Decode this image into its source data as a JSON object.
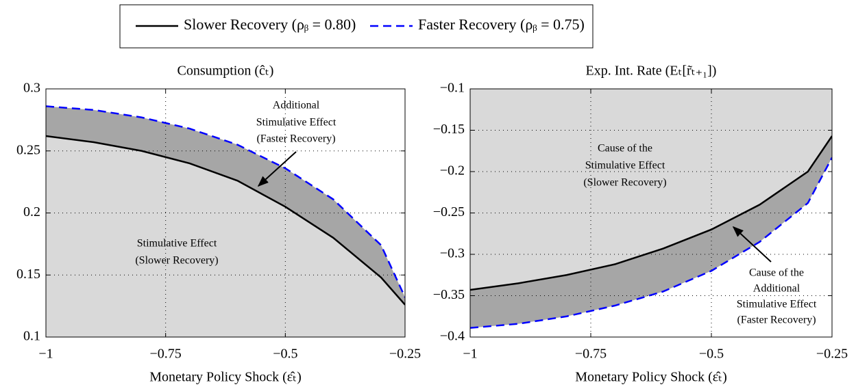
{
  "legend": {
    "position": "top"
  },
  "chart_data": [
    {
      "type": "line",
      "title": "Consumption (ĉₜ)",
      "xlabel": "Monetary Policy Shock (ε̂ₜ)",
      "x": [
        -1,
        -0.9,
        -0.8,
        -0.7,
        -0.6,
        -0.5,
        -0.4,
        -0.3,
        -0.25
      ],
      "series": [
        {
          "name": "Slower Recovery (ρᵦ = 0.80)",
          "color": "#000000",
          "dash": false,
          "values": [
            0.262,
            0.257,
            0.25,
            0.24,
            0.226,
            0.205,
            0.18,
            0.148,
            0.126
          ]
        },
        {
          "name": "Faster Recovery (ρᵦ = 0.75)",
          "color": "#0000ff",
          "dash": true,
          "values": [
            0.286,
            0.283,
            0.277,
            0.268,
            0.255,
            0.236,
            0.211,
            0.174,
            0.132
          ]
        }
      ],
      "xlim": [
        -1,
        -0.25
      ],
      "xticks": [
        {
          "value": -1,
          "label": "−1"
        },
        {
          "value": -0.75,
          "label": "−0.75"
        },
        {
          "value": -0.5,
          "label": "−0.5"
        },
        {
          "value": -0.25,
          "label": "−0.25"
        }
      ],
      "ylim": [
        0.1,
        0.3
      ],
      "yticks": [
        0.1,
        0.15,
        0.2,
        0.25,
        0.3
      ],
      "grid": true,
      "shade": "below",
      "shade_color": "#d9d9d9",
      "band_color": "#a6a6a6",
      "annotations": [
        [
          "Additional",
          "Stimulative Effect",
          "(Faster Recovery)"
        ],
        [
          "Stimulative Effect",
          "(Slower Recovery)"
        ]
      ]
    },
    {
      "type": "line",
      "title": "Exp. Int. Rate (Eₜ[r̃ₜ₊₁])",
      "xlabel": "Monetary Policy Shock (ε̂ₜ)",
      "x": [
        -1,
        -0.9,
        -0.8,
        -0.7,
        -0.6,
        -0.5,
        -0.4,
        -0.3,
        -0.25
      ],
      "series": [
        {
          "color": "#000000",
          "dash": false,
          "values": [
            -0.343,
            -0.335,
            -0.325,
            -0.312,
            -0.293,
            -0.27,
            -0.24,
            -0.2,
            -0.157
          ]
        },
        {
          "color": "#0000ff",
          "dash": true,
          "values": [
            -0.389,
            -0.384,
            -0.375,
            -0.362,
            -0.345,
            -0.32,
            -0.285,
            -0.238,
            -0.183
          ]
        }
      ],
      "xlim": [
        -1,
        -0.25
      ],
      "xticks": [
        {
          "value": -1,
          "label": "−1"
        },
        {
          "value": -0.75,
          "label": "−0.75"
        },
        {
          "value": -0.5,
          "label": "−0.5"
        },
        {
          "value": -0.25,
          "label": "−0.25"
        }
      ],
      "ylim": [
        -0.4,
        -0.1
      ],
      "yticks": [
        {
          "value": -0.4,
          "label": "−0.4"
        },
        {
          "value": -0.35,
          "label": "−0.35"
        },
        {
          "value": -0.3,
          "label": "−0.3"
        },
        {
          "value": -0.25,
          "label": "−0.25"
        },
        {
          "value": -0.2,
          "label": "−0.2"
        },
        {
          "value": -0.15,
          "label": "−0.15"
        },
        {
          "value": -0.1,
          "label": "−0.1"
        }
      ],
      "grid": true,
      "shade": "above",
      "shade_color": "#d9d9d9",
      "band_color": "#a6a6a6",
      "annotations": [
        [
          "Cause of the",
          "Stimulative Effect",
          "(Slower Recovery)"
        ],
        [
          "Cause of the",
          "Additional",
          "Stimulative Effect",
          "(Faster Recovery)"
        ]
      ]
    }
  ]
}
